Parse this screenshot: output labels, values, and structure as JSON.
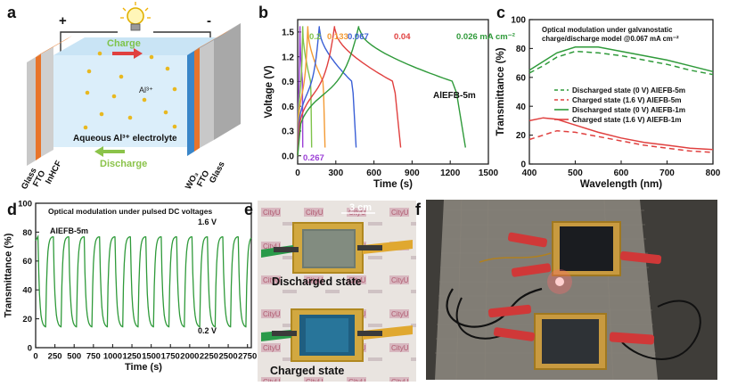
{
  "panel_labels": {
    "a": "a",
    "b": "b",
    "c": "c",
    "d": "d",
    "e": "e",
    "f": "f"
  },
  "panel_a": {
    "plus": "+",
    "minus": "-",
    "charge": "Charge",
    "discharge": "Discharge",
    "ion": "Al³⁺",
    "electrolyte": "Aqueous Al³⁺ electrolyte",
    "left_layers": [
      "Glass",
      "FTO",
      "InHCF"
    ],
    "right_layers": [
      "WO₃",
      "FTO",
      "Glass"
    ],
    "colors": {
      "orange": "#e8742a",
      "blue": "#3a86c8",
      "gray": "#b9b9b9",
      "electrolyte": "#dbeefa",
      "ion": "#e8b820"
    }
  },
  "panel_b": {
    "chart_data": {
      "type": "line",
      "title": "",
      "xlabel": "Time (s)",
      "ylabel": "Voltage (V)",
      "xlim": [
        0,
        1500
      ],
      "ylim": [
        -0.1,
        1.65
      ],
      "xticks": [
        "0",
        "300",
        "600",
        "900",
        "1200",
        "1500"
      ],
      "yticks": [
        "0.0",
        "0.3",
        "0.6",
        "0.9",
        "1.2",
        "1.5"
      ],
      "annotation": "AlEFB-5m",
      "series": [
        {
          "name": "0.267",
          "color": "#9b3fd6",
          "charge_end": 18,
          "discharge_end": 40
        },
        {
          "name": "0.2",
          "color": "#7ec34a",
          "charge_end": 40,
          "discharge_end": 110
        },
        {
          "name": "0.133",
          "color": "#f39a34",
          "charge_end": 80,
          "discharge_end": 215
        },
        {
          "name": "0.067",
          "color": "#3a5fd6",
          "charge_end": 170,
          "discharge_end": 460
        },
        {
          "name": "0.04",
          "color": "#e0403f",
          "charge_end": 290,
          "discharge_end": 810
        },
        {
          "name": "0.026 mA cm⁻²",
          "color": "#2f9a3a",
          "charge_end": 480,
          "discharge_end": 1320
        }
      ]
    }
  },
  "panel_c": {
    "chart_data": {
      "type": "line",
      "title": "Optical modulation under galvanostatic charge/discharge model @0.067 mA cm⁻²",
      "title_lines": [
        "Optical modulation under galvanostatic",
        "charge/discharge model @0.067 mA cm⁻²"
      ],
      "xlabel": "Wavelength (nm)",
      "ylabel": "Transmittance (%)",
      "xlim": [
        400,
        800
      ],
      "ylim": [
        0,
        100
      ],
      "xticks": [
        "400",
        "500",
        "600",
        "700",
        "800"
      ],
      "yticks": [
        "0",
        "20",
        "40",
        "60",
        "80",
        "100"
      ],
      "series": [
        {
          "name": "Discharged state (0 V) AlEFB-5m",
          "color": "#2f9a3a",
          "dash": true,
          "x": [
            400,
            430,
            460,
            500,
            550,
            600,
            650,
            700,
            750,
            800
          ],
          "y": [
            63,
            68,
            74,
            78,
            77,
            75,
            72,
            69,
            65,
            62
          ]
        },
        {
          "name": "Charged state (1.6 V) AlEFB-5m",
          "color": "#e0403f",
          "dash": true,
          "x": [
            400,
            430,
            460,
            500,
            550,
            600,
            650,
            700,
            750,
            800
          ],
          "y": [
            17,
            20,
            23,
            22,
            19,
            16,
            13,
            11,
            9,
            8
          ]
        },
        {
          "name": "Discharged state (0 V) AlEFB-1m",
          "color": "#2f9a3a",
          "dash": false,
          "x": [
            400,
            430,
            460,
            500,
            550,
            600,
            650,
            700,
            750,
            800
          ],
          "y": [
            65,
            71,
            77,
            81,
            81,
            78,
            75,
            72,
            68,
            64
          ]
        },
        {
          "name": "Charged state (1.6 V) AlEFB-1m",
          "color": "#e0403f",
          "dash": false,
          "x": [
            400,
            430,
            460,
            500,
            550,
            600,
            650,
            700,
            750,
            800
          ],
          "y": [
            30,
            32,
            31,
            27,
            22,
            18,
            15,
            13,
            11,
            10
          ]
        }
      ]
    }
  },
  "panel_d": {
    "chart_data": {
      "type": "line",
      "title": "Optical modulation under pulsed DC voltages",
      "xlabel": "Time (s)",
      "ylabel": "Transmittance (%)",
      "xlim": [
        0,
        2800
      ],
      "ylim": [
        0,
        100
      ],
      "xticks": [
        "0",
        "250",
        "500",
        "750",
        "1000",
        "1250",
        "1500",
        "1750",
        "2000",
        "2250",
        "2500",
        "2750"
      ],
      "yticks": [
        "0",
        "20",
        "40",
        "60",
        "80",
        "100"
      ],
      "annotation": "AlEFB-5m",
      "high_label": "1.6 V",
      "low_label": "0.2 V",
      "period": 200,
      "high": 77,
      "low": 14,
      "cycles": 14,
      "color": "#2f9a3a"
    }
  },
  "panel_e": {
    "scale": "3 cm",
    "discharged": "Discharged state",
    "charged": "Charged state"
  },
  "panel_f": {}
}
